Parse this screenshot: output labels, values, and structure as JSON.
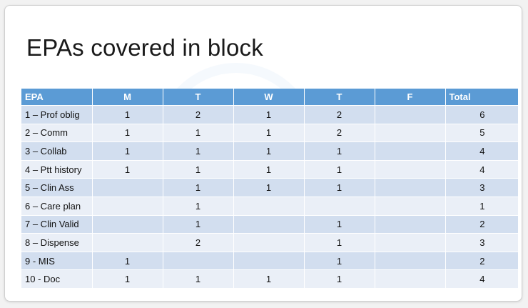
{
  "title": "EPAs covered in block",
  "table": {
    "headers": [
      "EPA",
      "M",
      "T",
      "W",
      "T",
      "F",
      "Total"
    ],
    "rows": [
      [
        "1 – Prof oblig",
        "1",
        "2",
        "1",
        "2",
        "",
        "6"
      ],
      [
        "2 – Comm",
        "1",
        "1",
        "1",
        "2",
        "",
        "5"
      ],
      [
        "3 – Collab",
        "1",
        "1",
        "1",
        "1",
        "",
        "4"
      ],
      [
        "4 – Ptt history",
        "1",
        "1",
        "1",
        "1",
        "",
        "4"
      ],
      [
        "5 – Clin Ass",
        "",
        "1",
        "1",
        "1",
        "",
        "3"
      ],
      [
        "6 – Care plan",
        "",
        "1",
        "",
        "",
        "",
        "1"
      ],
      [
        "7 – Clin Valid",
        "",
        "1",
        "",
        "1",
        "",
        "2"
      ],
      [
        "8 – Dispense",
        "",
        "2",
        "",
        "1",
        "",
        "3"
      ],
      [
        "9 - MIS",
        "1",
        "",
        "",
        "1",
        "",
        "2"
      ],
      [
        "10 - Doc",
        "1",
        "1",
        "1",
        "1",
        "",
        "4"
      ]
    ]
  },
  "colors": {
    "header_bg": "#5b9bd5",
    "row_odd": "#d2deef",
    "row_even": "#eaeff7"
  }
}
